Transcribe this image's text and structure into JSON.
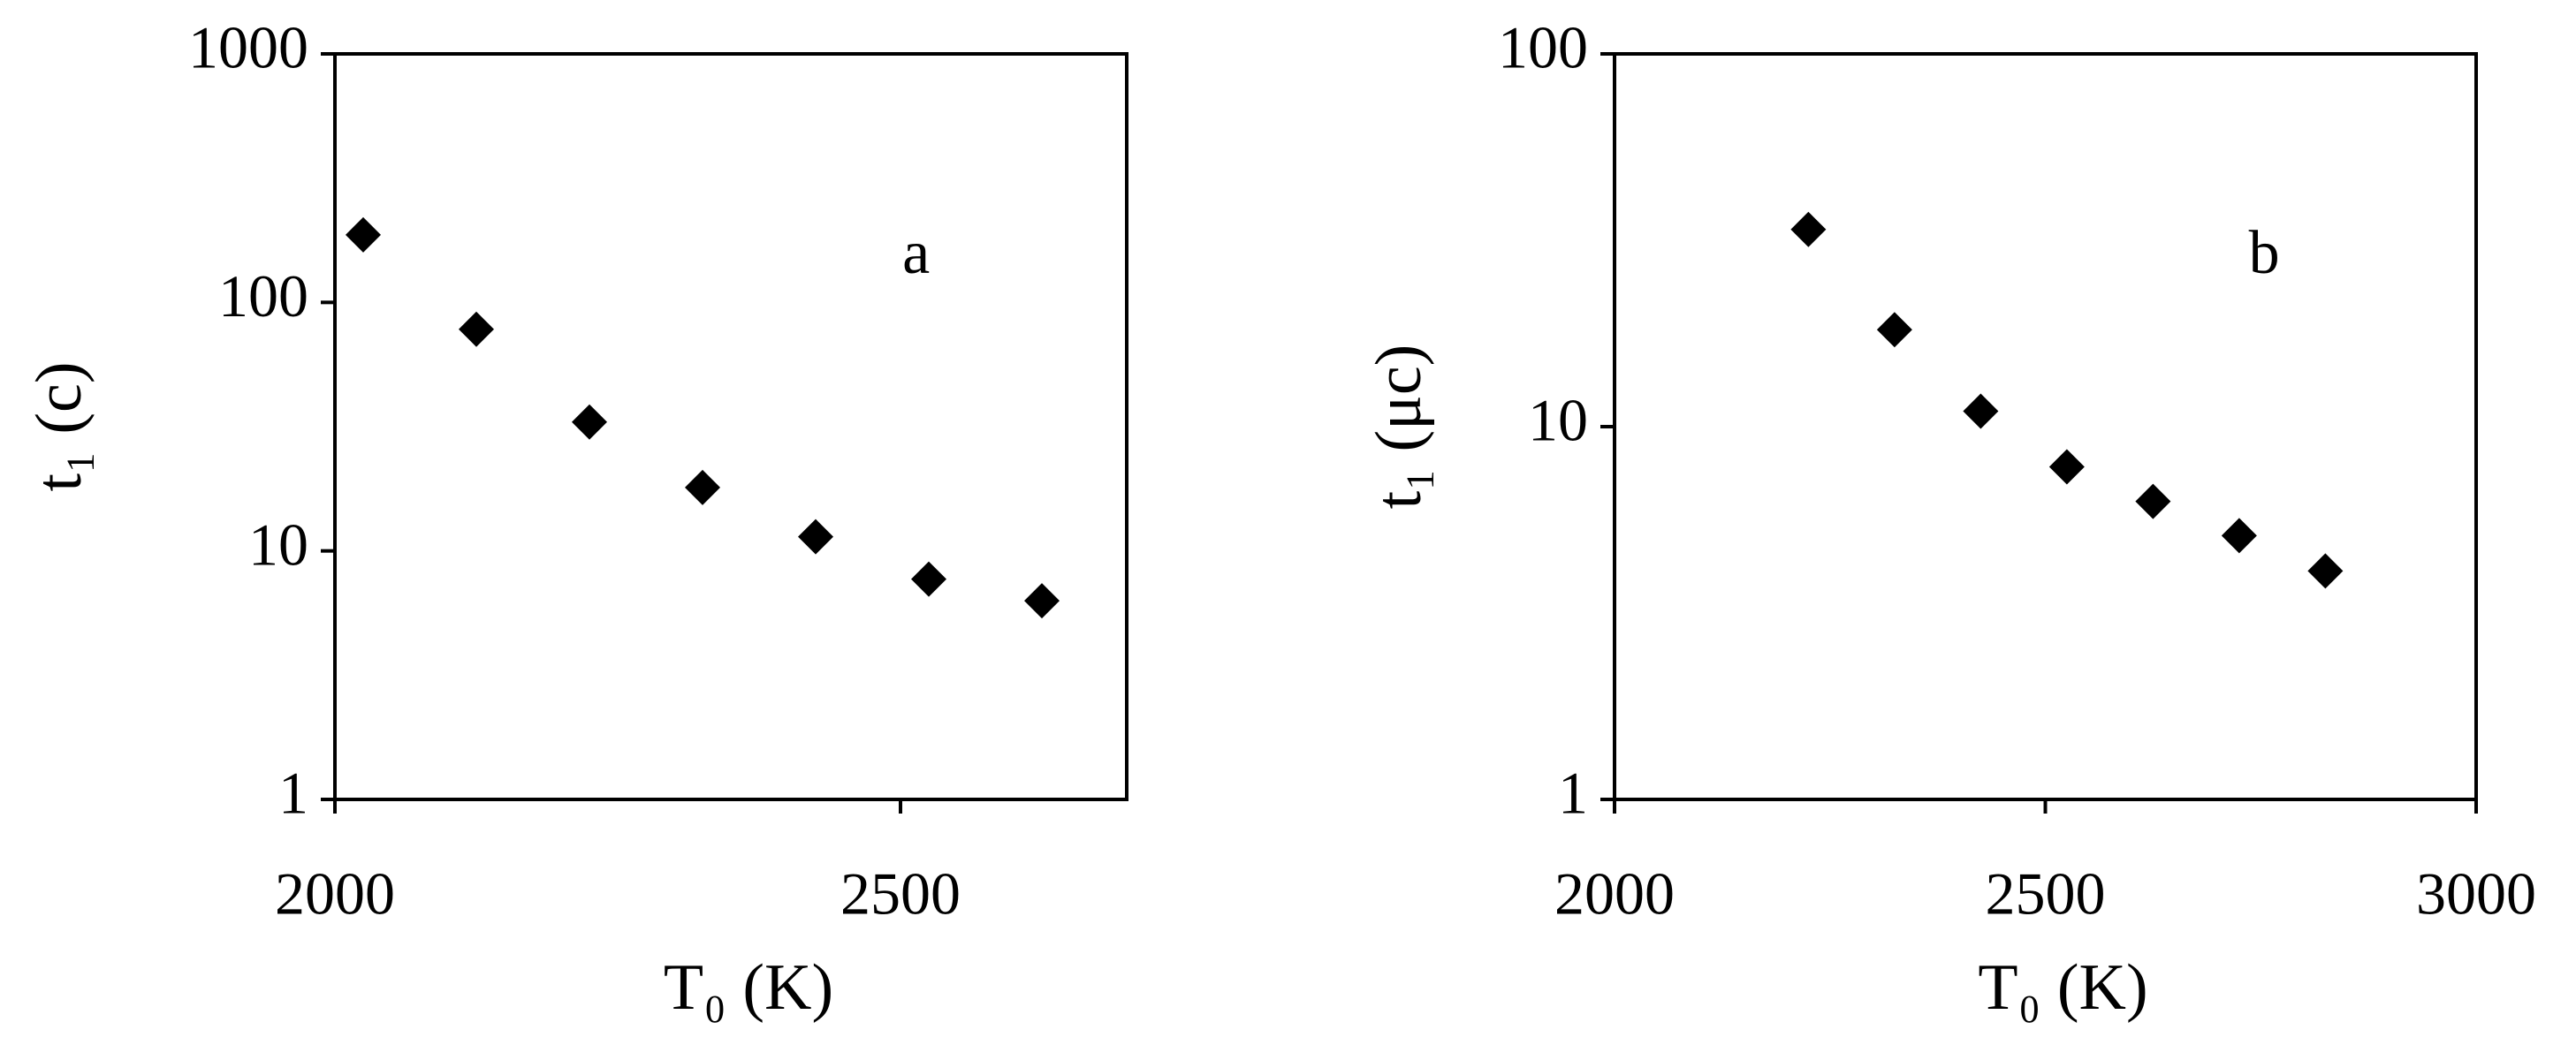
{
  "chart_data": [
    {
      "type": "scatter",
      "annotation": "a",
      "x_label": "T₀ (K)",
      "y_label": "t₁ (c)",
      "x": [
        2025,
        2125,
        2225,
        2325,
        2425,
        2525,
        2625
      ],
      "values": [
        187,
        78,
        33,
        18,
        11.4,
        7.7,
        6.3
      ],
      "color": "#000000",
      "marker": "diamond",
      "xlim": [
        2000,
        2700
      ],
      "xticks": [
        2000,
        2500
      ],
      "ylim": [
        1,
        1000
      ],
      "yticks": [
        1,
        10,
        100,
        1000
      ],
      "y_log": true
    },
    {
      "type": "scatter",
      "annotation": "b",
      "x_label": "T₀ (K)",
      "y_label": "t₁ (μc)",
      "x": [
        2225,
        2325,
        2425,
        2525,
        2625,
        2725,
        2825
      ],
      "values": [
        33.8,
        18.2,
        11,
        7.8,
        6.3,
        5.1,
        4.1
      ],
      "color": "#000000",
      "marker": "diamond",
      "xlim": [
        2000,
        3000
      ],
      "xticks": [
        2000,
        2500,
        3000
      ],
      "ylim": [
        1,
        100
      ],
      "yticks": [
        1,
        10,
        100
      ],
      "y_log": true
    }
  ]
}
